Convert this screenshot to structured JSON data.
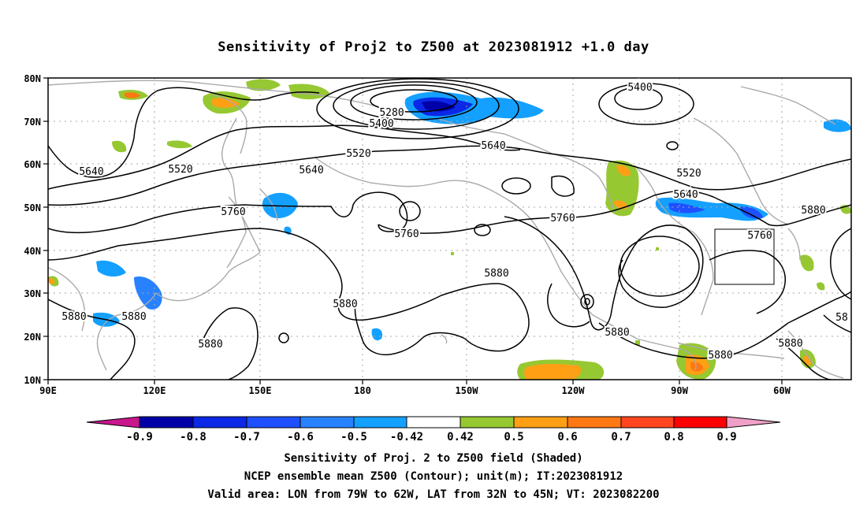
{
  "title": "Sensitivity of Proj2 to Z500 at 2023081912 +1.0 day",
  "map": {
    "lat_labels": [
      "80N",
      "70N",
      "60N",
      "50N",
      "40N",
      "30N",
      "20N",
      "10N"
    ],
    "lon_labels": [
      "90E",
      "120E",
      "150E",
      "180",
      "150W",
      "120W",
      "90W",
      "60W"
    ],
    "valid_area_box": {
      "lon": [
        "79W",
        "62W"
      ],
      "lat": [
        "32N",
        "45N"
      ]
    },
    "contour_labels": [
      {
        "id": "c1",
        "text": "5400"
      },
      {
        "id": "c2",
        "text": "5280"
      },
      {
        "id": "c3",
        "text": "5400"
      },
      {
        "id": "c4",
        "text": "5640"
      },
      {
        "id": "c5",
        "text": "5520"
      },
      {
        "id": "c6",
        "text": "5520"
      },
      {
        "id": "c7",
        "text": "5640"
      },
      {
        "id": "c8",
        "text": "5640"
      },
      {
        "id": "c9",
        "text": "5520"
      },
      {
        "id": "c10",
        "text": "5640"
      },
      {
        "id": "c11",
        "text": "5760"
      },
      {
        "id": "c12",
        "text": "5760"
      },
      {
        "id": "c13",
        "text": "5760"
      },
      {
        "id": "c14",
        "text": "5760"
      },
      {
        "id": "c15",
        "text": "5880"
      },
      {
        "id": "c16",
        "text": "5880"
      },
      {
        "id": "c17",
        "text": "5880"
      },
      {
        "id": "c18",
        "text": "5880"
      },
      {
        "id": "c19",
        "text": "5880"
      },
      {
        "id": "c20",
        "text": "5880"
      },
      {
        "id": "c21",
        "text": "5880"
      },
      {
        "id": "c22",
        "text": "5880"
      },
      {
        "id": "c23",
        "text": "5880"
      },
      {
        "id": "c24",
        "text": "58"
      }
    ]
  },
  "colorbar": {
    "labels": [
      "-0.9",
      "-0.8",
      "-0.7",
      "-0.6",
      "-0.5",
      "-0.42",
      "0.42",
      "0.5",
      "0.6",
      "0.7",
      "0.8",
      "0.9"
    ],
    "colors": [
      "#c8168c",
      "#0000a8",
      "#0a28e6",
      "#1e50ff",
      "#2882ff",
      "#14a0ff",
      "#00c8ff",
      "#ffffff",
      "#96c832",
      "#ffa014",
      "#ff7814",
      "#ff461e",
      "#ff0000",
      "#f0a0c8"
    ]
  },
  "colors": {
    "coast": "#aaaaaa",
    "contour": "#000000",
    "grid": "#aaaaaa"
  },
  "footer": {
    "line1": "Sensitivity of Proj. 2 to Z500 field (Shaded)",
    "line2": "NCEP ensemble mean Z500 (Contour); unit(m); IT:2023081912",
    "line3": "Valid area: LON from 79W to 62W, LAT from 32N to 45N; VT: 2023082200"
  }
}
